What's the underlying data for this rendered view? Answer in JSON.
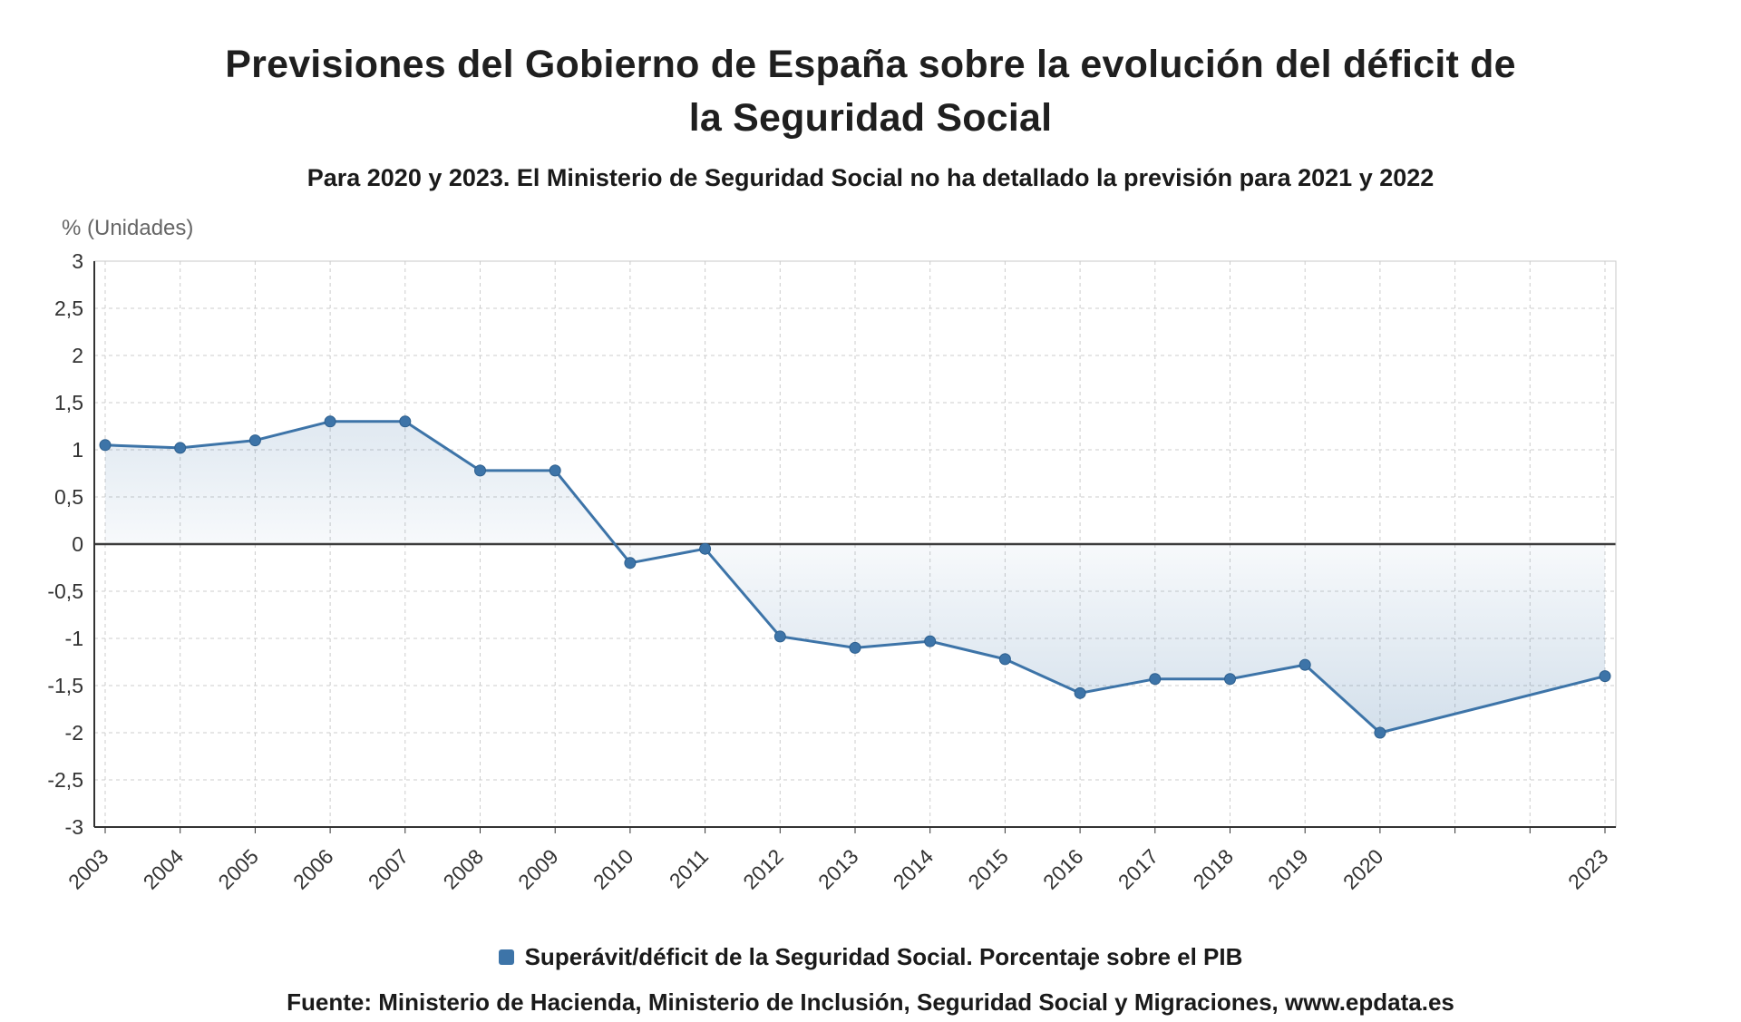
{
  "header": {
    "title_line1": "Previsiones del Gobierno de España sobre la evolución del déficit de",
    "title_line2": "la Seguridad Social"
  },
  "footer": {
    "source": "Fuente: Ministerio de Hacienda, Ministerio de Inclusión, Seguridad Social y Migraciones, www.epdata.es"
  },
  "chart_data": {
    "type": "line",
    "title": "Previsiones del Gobierno de España sobre la evolución del déficit de la Seguridad Social",
    "subtitle": "Para 2020 y 2023. El Ministerio de Seguridad Social no ha detallado la previsión para 2021 y 2022",
    "ylabel": "% (Unidades)",
    "xlabel": "",
    "series_name": "Superávit/déficit de la Seguridad Social. Porcentaje sobre el PIB",
    "x": [
      2003,
      2004,
      2005,
      2006,
      2007,
      2008,
      2009,
      2010,
      2011,
      2012,
      2013,
      2014,
      2015,
      2016,
      2017,
      2018,
      2019,
      2020,
      2023
    ],
    "values": [
      1.05,
      1.02,
      1.1,
      1.3,
      1.3,
      0.78,
      0.78,
      -0.2,
      -0.05,
      -0.98,
      -1.1,
      -1.03,
      -1.22,
      -1.58,
      -1.43,
      -1.43,
      -1.28,
      -2.0,
      -1.4
    ],
    "xlim": [
      2003,
      2023
    ],
    "ylim": [
      -3,
      3
    ],
    "ytick_step": 0.5,
    "decimal_separator": ",",
    "grid": true,
    "legend_position": "bottom",
    "baseline": 0,
    "colors": {
      "line": "#3d74a8",
      "line_dark": "#2d5f8e",
      "grid": "#cccccc",
      "zero": "#3c3c3c",
      "axis": "#333333",
      "border": "#c8c8c8",
      "text": "#333333",
      "muted": "#666666"
    }
  }
}
